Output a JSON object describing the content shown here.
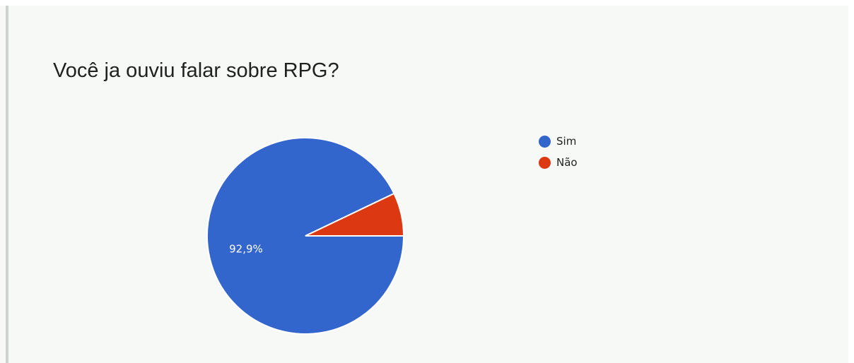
{
  "chart_data": {
    "type": "pie",
    "title": "Você ja ouviu falar sobre RPG?",
    "slices": [
      {
        "name": "Sim",
        "value": 92.9,
        "label": "92,9%",
        "color": "#3366cc"
      },
      {
        "name": "Não",
        "value": 7.1,
        "label": "",
        "color": "#dc3912"
      }
    ],
    "legend_position": "right"
  }
}
